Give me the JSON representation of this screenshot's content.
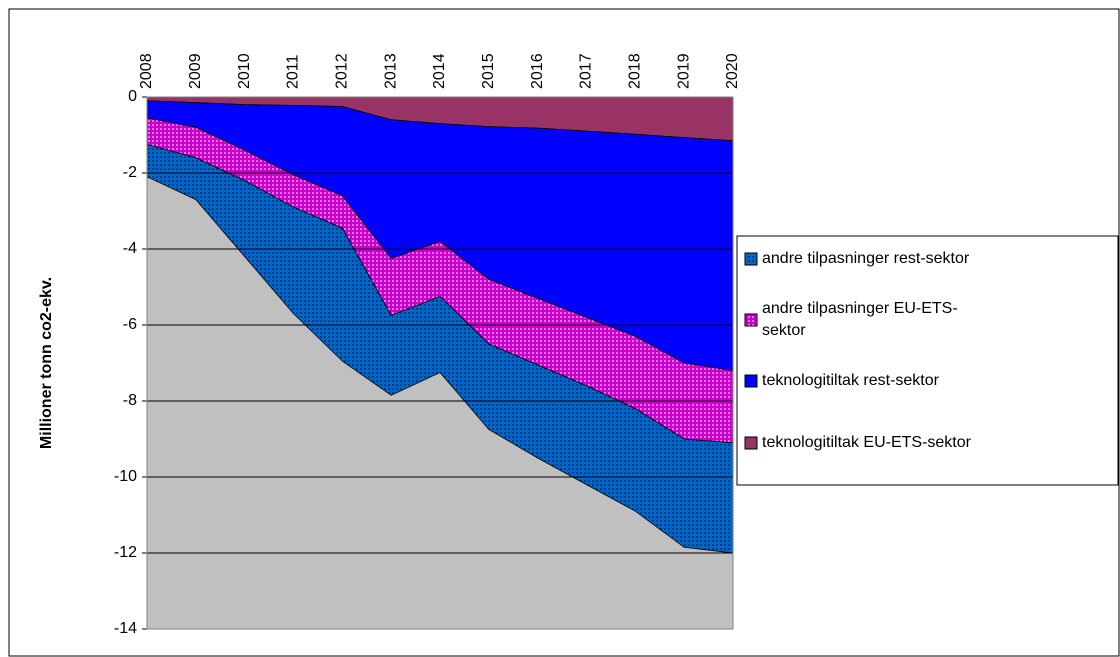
{
  "chart_data": {
    "type": "area",
    "stacked": true,
    "y_label": "Millioner tonn co2-ekv.",
    "categories": [
      "2008",
      "2009",
      "2010",
      "2011",
      "2012",
      "2013",
      "2014",
      "2015",
      "2016",
      "2017",
      "2018",
      "2019",
      "2020"
    ],
    "series": [
      {
        "name": "andre tilpasninger rest-sektor",
        "color": "#0066cc",
        "pattern": "dots",
        "values": [
          -0.85,
          -1.1,
          -2.0,
          -2.8,
          -3.5,
          -2.1,
          -2.0,
          -2.25,
          -2.45,
          -2.6,
          -2.7,
          -2.85,
          -2.9
        ]
      },
      {
        "name": "andre tilpasninger EU-ETS-sektor",
        "color": "#cc00cc",
        "pattern": "dots",
        "values": [
          -0.7,
          -0.8,
          -0.8,
          -0.85,
          -0.85,
          -1.5,
          -1.45,
          -1.7,
          -1.75,
          -1.8,
          -1.9,
          -2.0,
          -1.9
        ]
      },
      {
        "name": "teknologitiltak rest-sektor",
        "color": "#0000ff",
        "values": [
          -0.45,
          -0.65,
          -1.2,
          -1.83,
          -2.35,
          -3.65,
          -3.1,
          -4.02,
          -4.48,
          -4.9,
          -5.32,
          -5.93,
          -6.05
        ]
      },
      {
        "name": "teknologitiltak EU-ETS-sektor",
        "color": "#993366",
        "values": [
          -0.1,
          -0.15,
          -0.2,
          -0.22,
          -0.25,
          -0.6,
          -0.7,
          -0.78,
          -0.82,
          -0.9,
          -0.98,
          -1.07,
          -1.15
        ]
      }
    ],
    "ylim": [
      -14,
      0
    ],
    "yticks": [
      0,
      -2,
      -4,
      -6,
      -8,
      -10,
      -12,
      -14
    ],
    "grid": true,
    "plot_background": "#c0c0c0",
    "legend": "right"
  }
}
